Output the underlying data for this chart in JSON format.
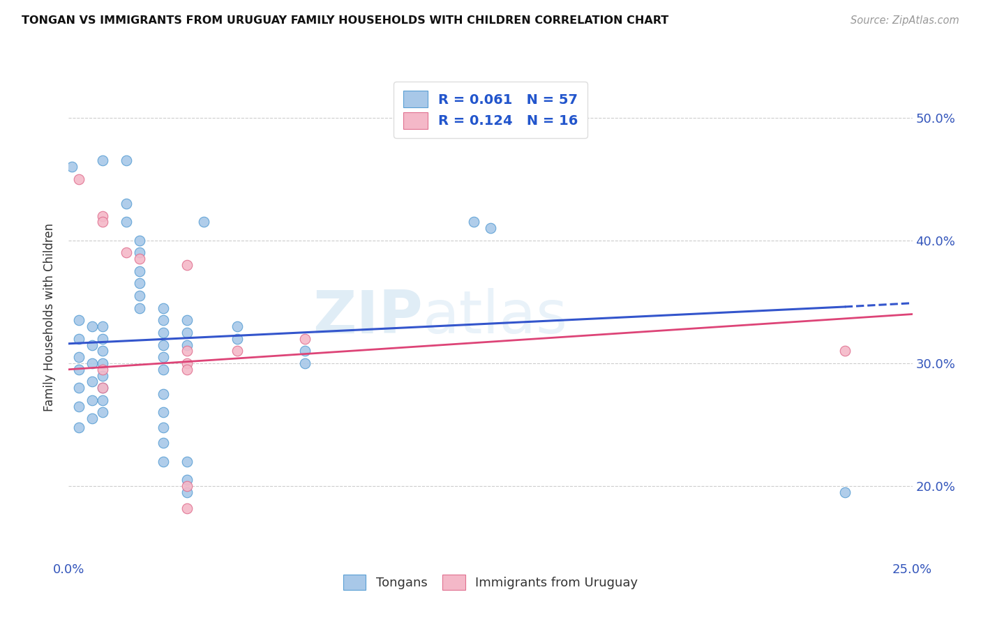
{
  "title": "TONGAN VS IMMIGRANTS FROM URUGUAY FAMILY HOUSEHOLDS WITH CHILDREN CORRELATION CHART",
  "source": "Source: ZipAtlas.com",
  "ylabel": "Family Households with Children",
  "x_min": 0.0,
  "x_max": 0.25,
  "y_min": 0.14,
  "y_max": 0.535,
  "x_ticks": [
    0.0,
    0.05,
    0.1,
    0.15,
    0.2,
    0.25
  ],
  "x_tick_labels": [
    "0.0%",
    "",
    "",
    "",
    "",
    "25.0%"
  ],
  "y_ticks": [
    0.2,
    0.3,
    0.4,
    0.5
  ],
  "y_tick_labels": [
    "20.0%",
    "30.0%",
    "40.0%",
    "50.0%"
  ],
  "blue_color": "#a8c8e8",
  "blue_edge_color": "#5a9fd4",
  "pink_color": "#f4b8c8",
  "pink_edge_color": "#e07090",
  "blue_line_color": "#3355cc",
  "pink_line_color": "#dd4477",
  "blue_R": 0.061,
  "blue_N": 57,
  "pink_R": 0.124,
  "pink_N": 16,
  "legend_label_blue": "Tongans",
  "legend_label_pink": "Immigrants from Uruguay",
  "watermark": "ZIPAtlas",
  "blue_points": [
    [
      0.001,
      0.46
    ],
    [
      0.01,
      0.465
    ],
    [
      0.017,
      0.465
    ],
    [
      0.017,
      0.43
    ],
    [
      0.017,
      0.415
    ],
    [
      0.04,
      0.415
    ],
    [
      0.021,
      0.4
    ],
    [
      0.021,
      0.39
    ],
    [
      0.021,
      0.375
    ],
    [
      0.021,
      0.365
    ],
    [
      0.021,
      0.355
    ],
    [
      0.021,
      0.345
    ],
    [
      0.028,
      0.345
    ],
    [
      0.028,
      0.335
    ],
    [
      0.028,
      0.325
    ],
    [
      0.028,
      0.315
    ],
    [
      0.028,
      0.305
    ],
    [
      0.028,
      0.295
    ],
    [
      0.035,
      0.335
    ],
    [
      0.035,
      0.325
    ],
    [
      0.035,
      0.315
    ],
    [
      0.01,
      0.33
    ],
    [
      0.01,
      0.32
    ],
    [
      0.01,
      0.31
    ],
    [
      0.01,
      0.3
    ],
    [
      0.01,
      0.29
    ],
    [
      0.01,
      0.28
    ],
    [
      0.01,
      0.27
    ],
    [
      0.01,
      0.26
    ],
    [
      0.007,
      0.33
    ],
    [
      0.007,
      0.315
    ],
    [
      0.007,
      0.3
    ],
    [
      0.007,
      0.285
    ],
    [
      0.007,
      0.27
    ],
    [
      0.007,
      0.255
    ],
    [
      0.003,
      0.335
    ],
    [
      0.003,
      0.32
    ],
    [
      0.003,
      0.305
    ],
    [
      0.003,
      0.295
    ],
    [
      0.003,
      0.28
    ],
    [
      0.003,
      0.265
    ],
    [
      0.003,
      0.248
    ],
    [
      0.05,
      0.33
    ],
    [
      0.05,
      0.32
    ],
    [
      0.07,
      0.31
    ],
    [
      0.07,
      0.3
    ],
    [
      0.028,
      0.275
    ],
    [
      0.028,
      0.26
    ],
    [
      0.028,
      0.248
    ],
    [
      0.028,
      0.235
    ],
    [
      0.028,
      0.22
    ],
    [
      0.12,
      0.415
    ],
    [
      0.125,
      0.41
    ],
    [
      0.035,
      0.22
    ],
    [
      0.035,
      0.205
    ],
    [
      0.035,
      0.195
    ],
    [
      0.23,
      0.195
    ]
  ],
  "pink_points": [
    [
      0.003,
      0.45
    ],
    [
      0.01,
      0.42
    ],
    [
      0.01,
      0.415
    ],
    [
      0.017,
      0.39
    ],
    [
      0.021,
      0.385
    ],
    [
      0.01,
      0.295
    ],
    [
      0.01,
      0.28
    ],
    [
      0.035,
      0.38
    ],
    [
      0.035,
      0.31
    ],
    [
      0.035,
      0.3
    ],
    [
      0.035,
      0.295
    ],
    [
      0.05,
      0.31
    ],
    [
      0.07,
      0.32
    ],
    [
      0.035,
      0.2
    ],
    [
      0.035,
      0.182
    ],
    [
      0.23,
      0.31
    ]
  ]
}
